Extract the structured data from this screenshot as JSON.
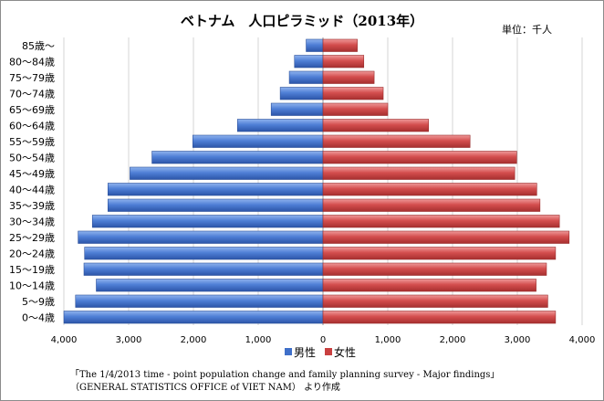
{
  "chart_data": {
    "type": "bar",
    "orientation": "horizontal-pyramid",
    "title": "ベトナム　人口ピラミッド（2013年）",
    "unit_label": "単位：千人",
    "categories": [
      "0〜4歳",
      "5〜9歳",
      "10〜14歳",
      "15〜19歳",
      "20〜24歳",
      "25〜29歳",
      "30〜34歳",
      "35〜39歳",
      "40〜44歳",
      "45〜49歳",
      "50〜54歳",
      "55〜59歳",
      "60〜64歳",
      "65〜69歳",
      "70〜74歳",
      "75〜79歳",
      "80〜84歳",
      "85歳〜"
    ],
    "series": [
      {
        "name": "男性",
        "color": "#3f6fc9",
        "side": "left",
        "values": [
          4000,
          3820,
          3500,
          3690,
          3680,
          3780,
          3560,
          3320,
          3320,
          2980,
          2640,
          2010,
          1320,
          800,
          660,
          520,
          440,
          260
        ]
      },
      {
        "name": "女性",
        "color": "#c94040",
        "side": "right",
        "values": [
          3590,
          3470,
          3290,
          3450,
          3590,
          3800,
          3650,
          3350,
          3300,
          2960,
          2990,
          2270,
          1630,
          1000,
          930,
          790,
          630,
          530
        ]
      }
    ],
    "x_ticks": [
      "4,000",
      "3,000",
      "2,000",
      "1,000",
      "0",
      "1,000",
      "2,000",
      "3,000",
      "4,000"
    ],
    "xlim": [
      -4000,
      4000
    ],
    "grid": true,
    "legend_position": "bottom",
    "source_lines": [
      "「The 1/4/2013 time - point population change and family planning survey - Major findings」",
      "（GENERAL STATISTICS OFFICE of VIET NAM） より作成"
    ]
  }
}
